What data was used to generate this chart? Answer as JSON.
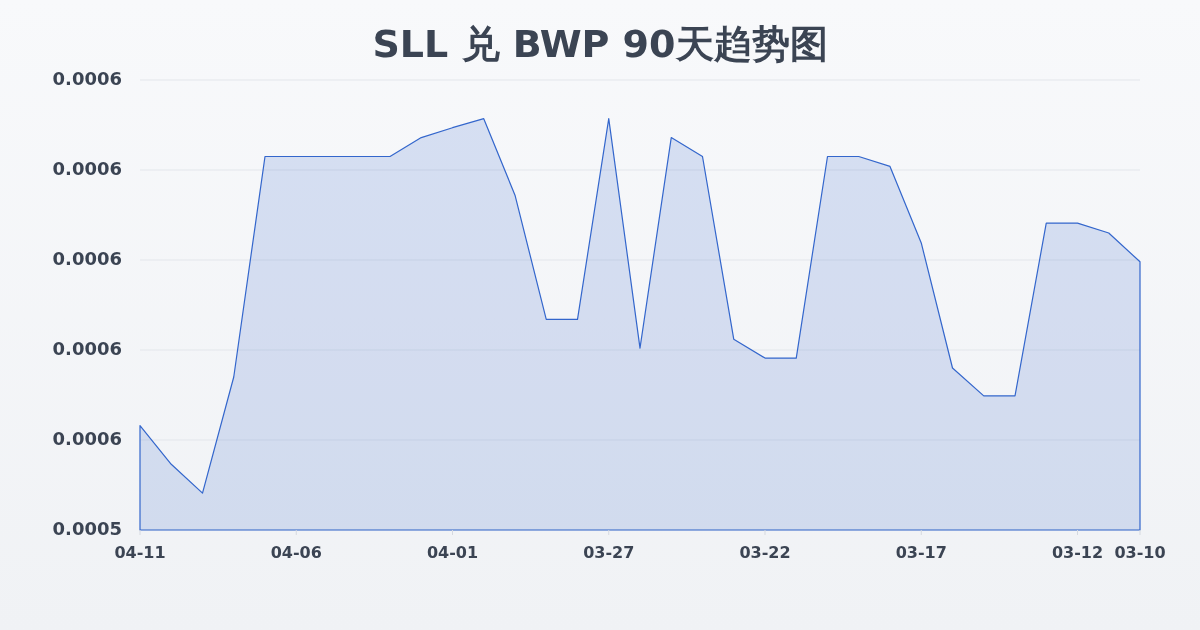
{
  "chart_data": {
    "type": "area",
    "title": "SLL 兑 BWP 90天趋势图",
    "categories": [
      "04-11",
      null,
      null,
      null,
      null,
      "04-06",
      null,
      null,
      null,
      null,
      "04-01",
      null,
      null,
      null,
      null,
      "03-27",
      null,
      null,
      null,
      null,
      "03-22",
      null,
      null,
      null,
      null,
      "03-17",
      null,
      null,
      null,
      null,
      "03-12",
      null,
      "03-10"
    ],
    "series": [
      {
        "color": "#3366cc",
        "values": [
          0.0005516,
          0.0005473,
          0.0005441,
          0.000557,
          0.0005815,
          0.0005815,
          0.0005815,
          0.0005815,
          0.0005815,
          0.0005836,
          0.0005847,
          0.0005857,
          0.0005772,
          0.0005634,
          0.0005634,
          0.0005857,
          0.0005602,
          0.0005836,
          0.0005815,
          0.0005612,
          0.0005591,
          0.0005591,
          0.0005815,
          0.0005815,
          0.0005804,
          0.0005719,
          0.000558,
          0.0005549,
          0.0005549,
          0.0005741,
          0.0005741,
          0.000573,
          0.0005698
        ]
      }
    ],
    "ylim": [
      0.00054,
      0.00059
    ],
    "yticks": [
      {
        "value": 0.00054,
        "label": "0.0005"
      },
      {
        "value": 0.00055,
        "label": "0.0006"
      },
      {
        "value": 0.00056,
        "label": "0.0006"
      },
      {
        "value": 0.00057,
        "label": "0.0006"
      },
      {
        "value": 0.00058,
        "label": "0.0006"
      },
      {
        "value": 0.00059,
        "label": "0.0006"
      }
    ],
    "grid": "y"
  }
}
